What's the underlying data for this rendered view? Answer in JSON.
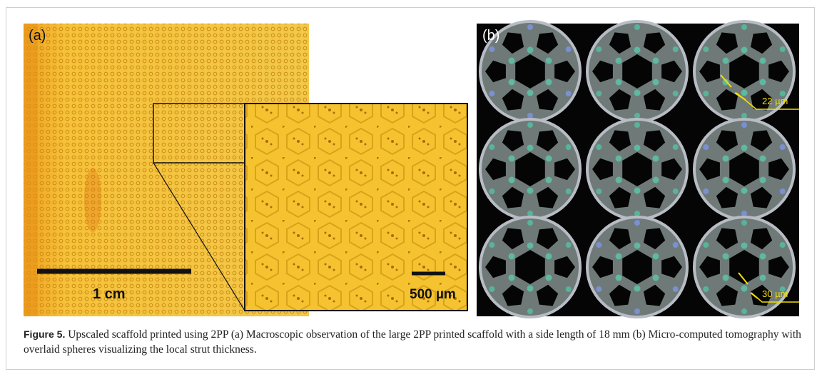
{
  "panel_a": {
    "label": "(a)",
    "scale_bar": "1 cm",
    "inset_scale_bar": "500 µm"
  },
  "panel_b": {
    "label": "(b)",
    "annotations": [
      "22 µm",
      "30 µm"
    ]
  },
  "caption": {
    "label": "Figure 5.",
    "text": "Upscaled scaffold printed using 2PP (a) Macroscopic observation of the large 2PP printed scaffold with a side length of 18 mm (b) Micro-computed tomography with overlaid spheres visualizing the local strut thickness."
  }
}
